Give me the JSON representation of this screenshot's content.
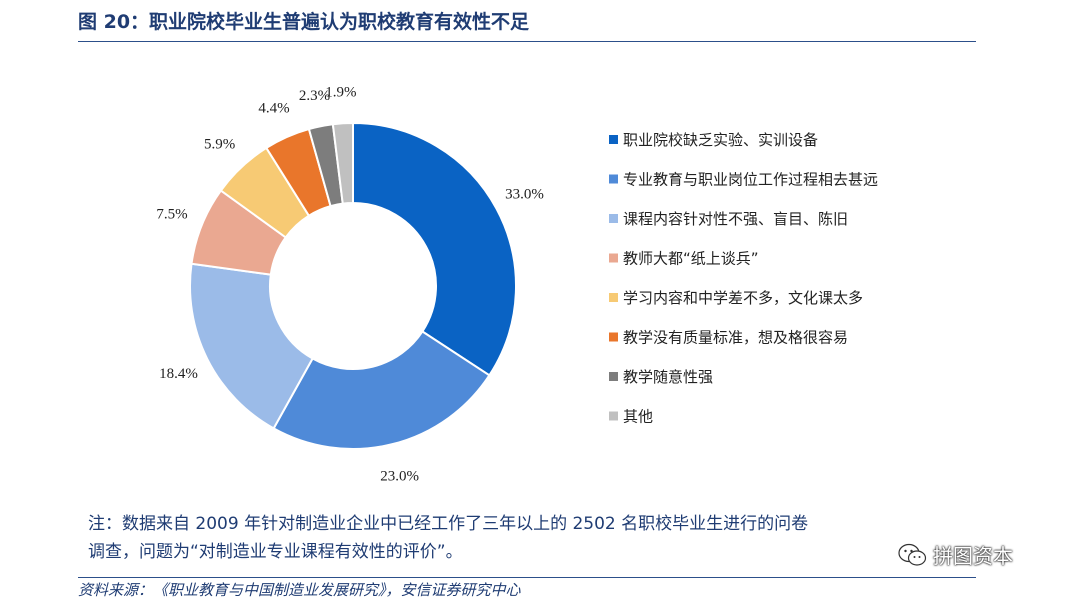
{
  "figure": {
    "title": "图 20：职业院校毕业生普遍认为职校教育有效性不足",
    "note_line1": "注：数据来自 2009 年针对制造业企业中已经工作了三年以上的 2502 名职校毕业生进行的问卷",
    "note_line2": "调查，问题为“对制造业专业课程有效性的评价”。",
    "source": "资料来源：《职业教育与中国制造业发展研究》，安信证券研究中心",
    "watermark": "拼图资本"
  },
  "chart_data": {
    "type": "pie",
    "subtype": "donut",
    "title": "",
    "slices": [
      {
        "label": "职业院校缺乏实验、实训设备",
        "value": 33.0,
        "value_label": "33.0%",
        "color": "#0a63c4"
      },
      {
        "label": "专业教育与职业岗位工作过程相去甚远",
        "value": 23.0,
        "value_label": "23.0%",
        "color": "#4f8ad8"
      },
      {
        "label": "课程内容针对性不强、盲目、陈旧",
        "value": 18.4,
        "value_label": "18.4%",
        "color": "#9bbbe8"
      },
      {
        "label": "教师大都“纸上谈兵”",
        "value": 7.5,
        "value_label": "7.5%",
        "color": "#eaa891"
      },
      {
        "label": "学习内容和中学差不多，文化课太多",
        "value": 5.9,
        "value_label": "5.9%",
        "color": "#f7ca74"
      },
      {
        "label": "教学没有质量标准，想及格很容易",
        "value": 4.4,
        "value_label": "4.4%",
        "color": "#e9762b"
      },
      {
        "label": "教学随意性强",
        "value": 2.3,
        "value_label": "2.3%",
        "color": "#7d7d7d"
      },
      {
        "label": "其他",
        "value": 1.9,
        "value_label": "1.9%",
        "color": "#c0c0c0"
      }
    ],
    "start_angle": "12 o'clock",
    "direction": "clockwise",
    "legend_position": "right"
  }
}
